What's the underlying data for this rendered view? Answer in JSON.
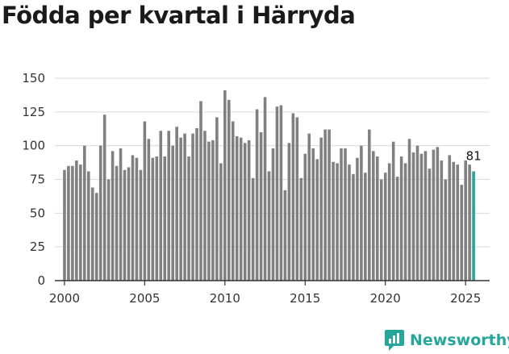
{
  "title": "Födda per kvartal i Härryda",
  "brand": {
    "name": "Newsworthy",
    "icon": "newsworthy-logo-icon",
    "color": "#26a69a"
  },
  "chart_data": {
    "type": "bar",
    "title": "Födda per kvartal i Härryda",
    "xlabel": "",
    "ylabel": "",
    "x_ticks": [
      2000,
      2005,
      2010,
      2015,
      2020,
      2025
    ],
    "y_ticks": [
      0,
      25,
      50,
      75,
      100,
      125,
      150
    ],
    "xlim": [
      1999.4,
      2026.5
    ],
    "ylim": [
      0,
      150
    ],
    "grid": "horizontal",
    "bar_color": "#808080",
    "highlight_color": "#26a69a",
    "highlight_index": 102,
    "annotation": {
      "text": "81",
      "index": 102
    },
    "start_year": 2000,
    "start_quarter": 1,
    "values": [
      82,
      85,
      85,
      89,
      86,
      100,
      81,
      69,
      65,
      100,
      123,
      75,
      96,
      85,
      98,
      82,
      84,
      93,
      91,
      82,
      118,
      105,
      91,
      92,
      111,
      92,
      111,
      100,
      114,
      106,
      109,
      92,
      109,
      113,
      133,
      111,
      103,
      104,
      121,
      87,
      141,
      134,
      118,
      107,
      106,
      102,
      104,
      76,
      127,
      110,
      136,
      81,
      98,
      129,
      130,
      67,
      102,
      124,
      121,
      76,
      94,
      109,
      98,
      90,
      106,
      112,
      112,
      88,
      87,
      98,
      98,
      86,
      79,
      91,
      100,
      80,
      112,
      96,
      92,
      75,
      80,
      87,
      103,
      77,
      92,
      87,
      105,
      95,
      100,
      94,
      96,
      83,
      97,
      99,
      89,
      75,
      93,
      88,
      86,
      71,
      89,
      86,
      81
    ]
  }
}
